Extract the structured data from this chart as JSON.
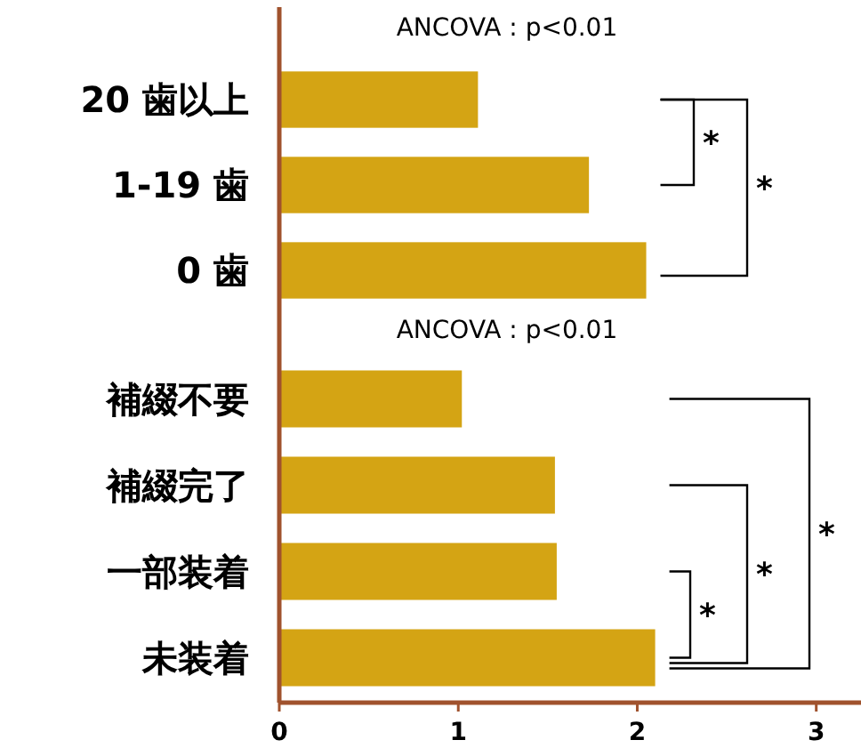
{
  "chart_data": [
    {
      "type": "bar",
      "orientation": "horizontal",
      "categories": [
        "20 歯以上",
        "1-19 歯",
        "0 歯"
      ],
      "values": [
        1.11,
        1.73,
        2.05
      ],
      "color": "#d4a414",
      "xlim": [
        0,
        3.25
      ],
      "tick_labels": "y",
      "annotations": [
        "ANCOVA : p<0.01",
        "*",
        "*"
      ]
    },
    {
      "type": "bar",
      "orientation": "horizontal",
      "categories": [
        "補綴不要",
        "補綴完了",
        "一部装着",
        "未装着"
      ],
      "values": [
        1.02,
        1.54,
        1.55,
        2.1
      ],
      "color": "#d4a414",
      "xlim": [
        0,
        3.25
      ],
      "xticks": [
        0,
        1,
        2,
        3
      ],
      "annotations": [
        "ANCOVA : p<0.01",
        "*",
        "*",
        "*"
      ]
    }
  ]
}
